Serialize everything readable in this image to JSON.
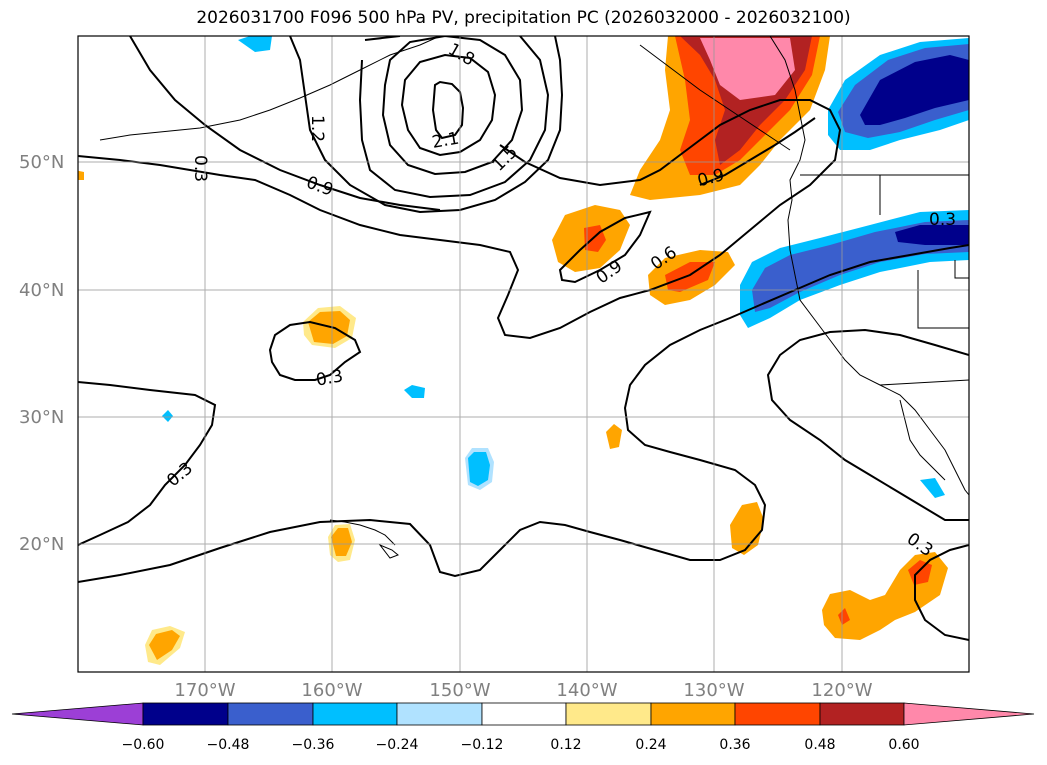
{
  "title": "2026031700 F096 500 hPa PV, precipitation PC (2026032000 - 2026032100)",
  "lat_labels": [
    "50°N",
    "40°N",
    "30°N",
    "20°N"
  ],
  "lon_labels": [
    "170°W",
    "160°W",
    "150°W",
    "140°W",
    "130°W",
    "120°W"
  ],
  "contour_labels": [
    "1.8",
    "2.1",
    "1.5",
    "1.2",
    "0.9",
    "0.9",
    "0.3",
    "0.6",
    "0.9",
    "0.3",
    "0.3",
    "0.3",
    "0.3"
  ],
  "colorbar": {
    "ticks": [
      "−0.60",
      "−0.48",
      "−0.36",
      "−0.24",
      "−0.12",
      "0.12",
      "0.24",
      "0.36",
      "0.48",
      "0.60"
    ],
    "colors": [
      "#9c3fd6",
      "#00008b",
      "#3a5fcd",
      "#00bfff",
      "#b0e2ff",
      "#ffffff",
      "#ffe98a",
      "#ffa500",
      "#ff4500",
      "#b22222",
      "#ff88aa"
    ]
  }
}
